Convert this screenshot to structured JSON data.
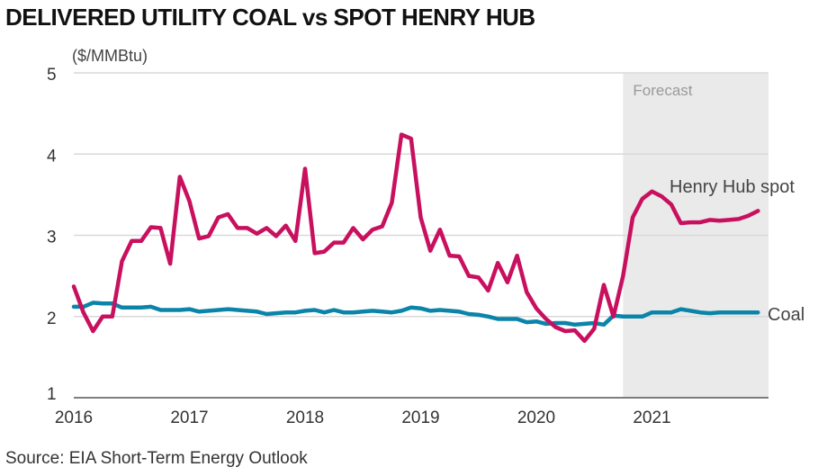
{
  "title": "DELIVERED UTILITY COAL vs SPOT HENRY HUB",
  "source": "Source: EIA Short-Term Energy Outlook",
  "colors": {
    "henry_hub": "#c8105f",
    "coal": "#0b84a9",
    "forecast_band": "#e9eae9",
    "grid": "#d9d9d9",
    "axis": "#555555"
  },
  "chart_data": {
    "type": "line",
    "title": "DELIVERED UTILITY COAL vs SPOT HENRY HUB",
    "ylabel": "($/MMBtu)",
    "xlabel": "",
    "ylim": [
      1,
      5
    ],
    "yticks": [
      "1",
      "2",
      "3",
      "4",
      "5"
    ],
    "xlim": [
      2016,
      2022
    ],
    "xticks": [
      "2016",
      "2017",
      "2018",
      "2019",
      "2020",
      "2021"
    ],
    "grid": true,
    "forecast": {
      "label": "Forecast",
      "start": "2020-10"
    },
    "x": [
      "2016-01",
      "2016-02",
      "2016-03",
      "2016-04",
      "2016-05",
      "2016-06",
      "2016-07",
      "2016-08",
      "2016-09",
      "2016-10",
      "2016-11",
      "2016-12",
      "2017-01",
      "2017-02",
      "2017-03",
      "2017-04",
      "2017-05",
      "2017-06",
      "2017-07",
      "2017-08",
      "2017-09",
      "2017-10",
      "2017-11",
      "2017-12",
      "2018-01",
      "2018-02",
      "2018-03",
      "2018-04",
      "2018-05",
      "2018-06",
      "2018-07",
      "2018-08",
      "2018-09",
      "2018-10",
      "2018-11",
      "2018-12",
      "2019-01",
      "2019-02",
      "2019-03",
      "2019-04",
      "2019-05",
      "2019-06",
      "2019-07",
      "2019-08",
      "2019-09",
      "2019-10",
      "2019-11",
      "2019-12",
      "2020-01",
      "2020-02",
      "2020-03",
      "2020-04",
      "2020-05",
      "2020-06",
      "2020-07",
      "2020-08",
      "2020-09",
      "2020-10",
      "2020-11",
      "2020-12",
      "2021-01",
      "2021-02",
      "2021-03",
      "2021-04",
      "2021-05",
      "2021-06",
      "2021-07",
      "2021-08",
      "2021-09",
      "2021-10",
      "2021-11",
      "2021-12"
    ],
    "series": [
      {
        "name": "Henry Hub spot",
        "color": "#c8105f",
        "values": [
          2.37,
          2.05,
          1.82,
          2.0,
          2.0,
          2.68,
          2.93,
          2.93,
          3.1,
          3.09,
          2.65,
          3.72,
          3.42,
          2.96,
          2.99,
          3.22,
          3.26,
          3.09,
          3.09,
          3.02,
          3.09,
          2.99,
          3.12,
          2.93,
          3.82,
          2.78,
          2.8,
          2.91,
          2.91,
          3.09,
          2.95,
          3.07,
          3.11,
          3.4,
          4.24,
          4.19,
          3.22,
          2.81,
          3.07,
          2.75,
          2.74,
          2.5,
          2.48,
          2.32,
          2.66,
          2.42,
          2.75,
          2.3,
          2.1,
          1.97,
          1.87,
          1.82,
          1.83,
          1.7,
          1.85,
          2.39,
          2.0,
          2.5,
          3.22,
          3.45,
          3.54,
          3.48,
          3.38,
          3.15,
          3.16,
          3.16,
          3.19,
          3.18,
          3.19,
          3.2,
          3.24,
          3.3
        ]
      },
      {
        "name": "Coal",
        "color": "#0b84a9",
        "values": [
          2.12,
          2.12,
          2.17,
          2.16,
          2.16,
          2.11,
          2.11,
          2.11,
          2.12,
          2.08,
          2.08,
          2.08,
          2.09,
          2.06,
          2.07,
          2.08,
          2.09,
          2.08,
          2.07,
          2.06,
          2.03,
          2.04,
          2.05,
          2.05,
          2.07,
          2.08,
          2.05,
          2.08,
          2.05,
          2.05,
          2.06,
          2.07,
          2.06,
          2.05,
          2.07,
          2.11,
          2.1,
          2.07,
          2.08,
          2.07,
          2.06,
          2.03,
          2.02,
          2.0,
          1.97,
          1.97,
          1.97,
          1.93,
          1.94,
          1.91,
          1.92,
          1.92,
          1.9,
          1.91,
          1.92,
          1.9,
          2.01,
          2.0,
          2.0,
          2.0,
          2.05,
          2.05,
          2.05,
          2.09,
          2.07,
          2.05,
          2.04,
          2.05,
          2.05,
          2.05,
          2.05,
          2.05
        ]
      }
    ]
  }
}
